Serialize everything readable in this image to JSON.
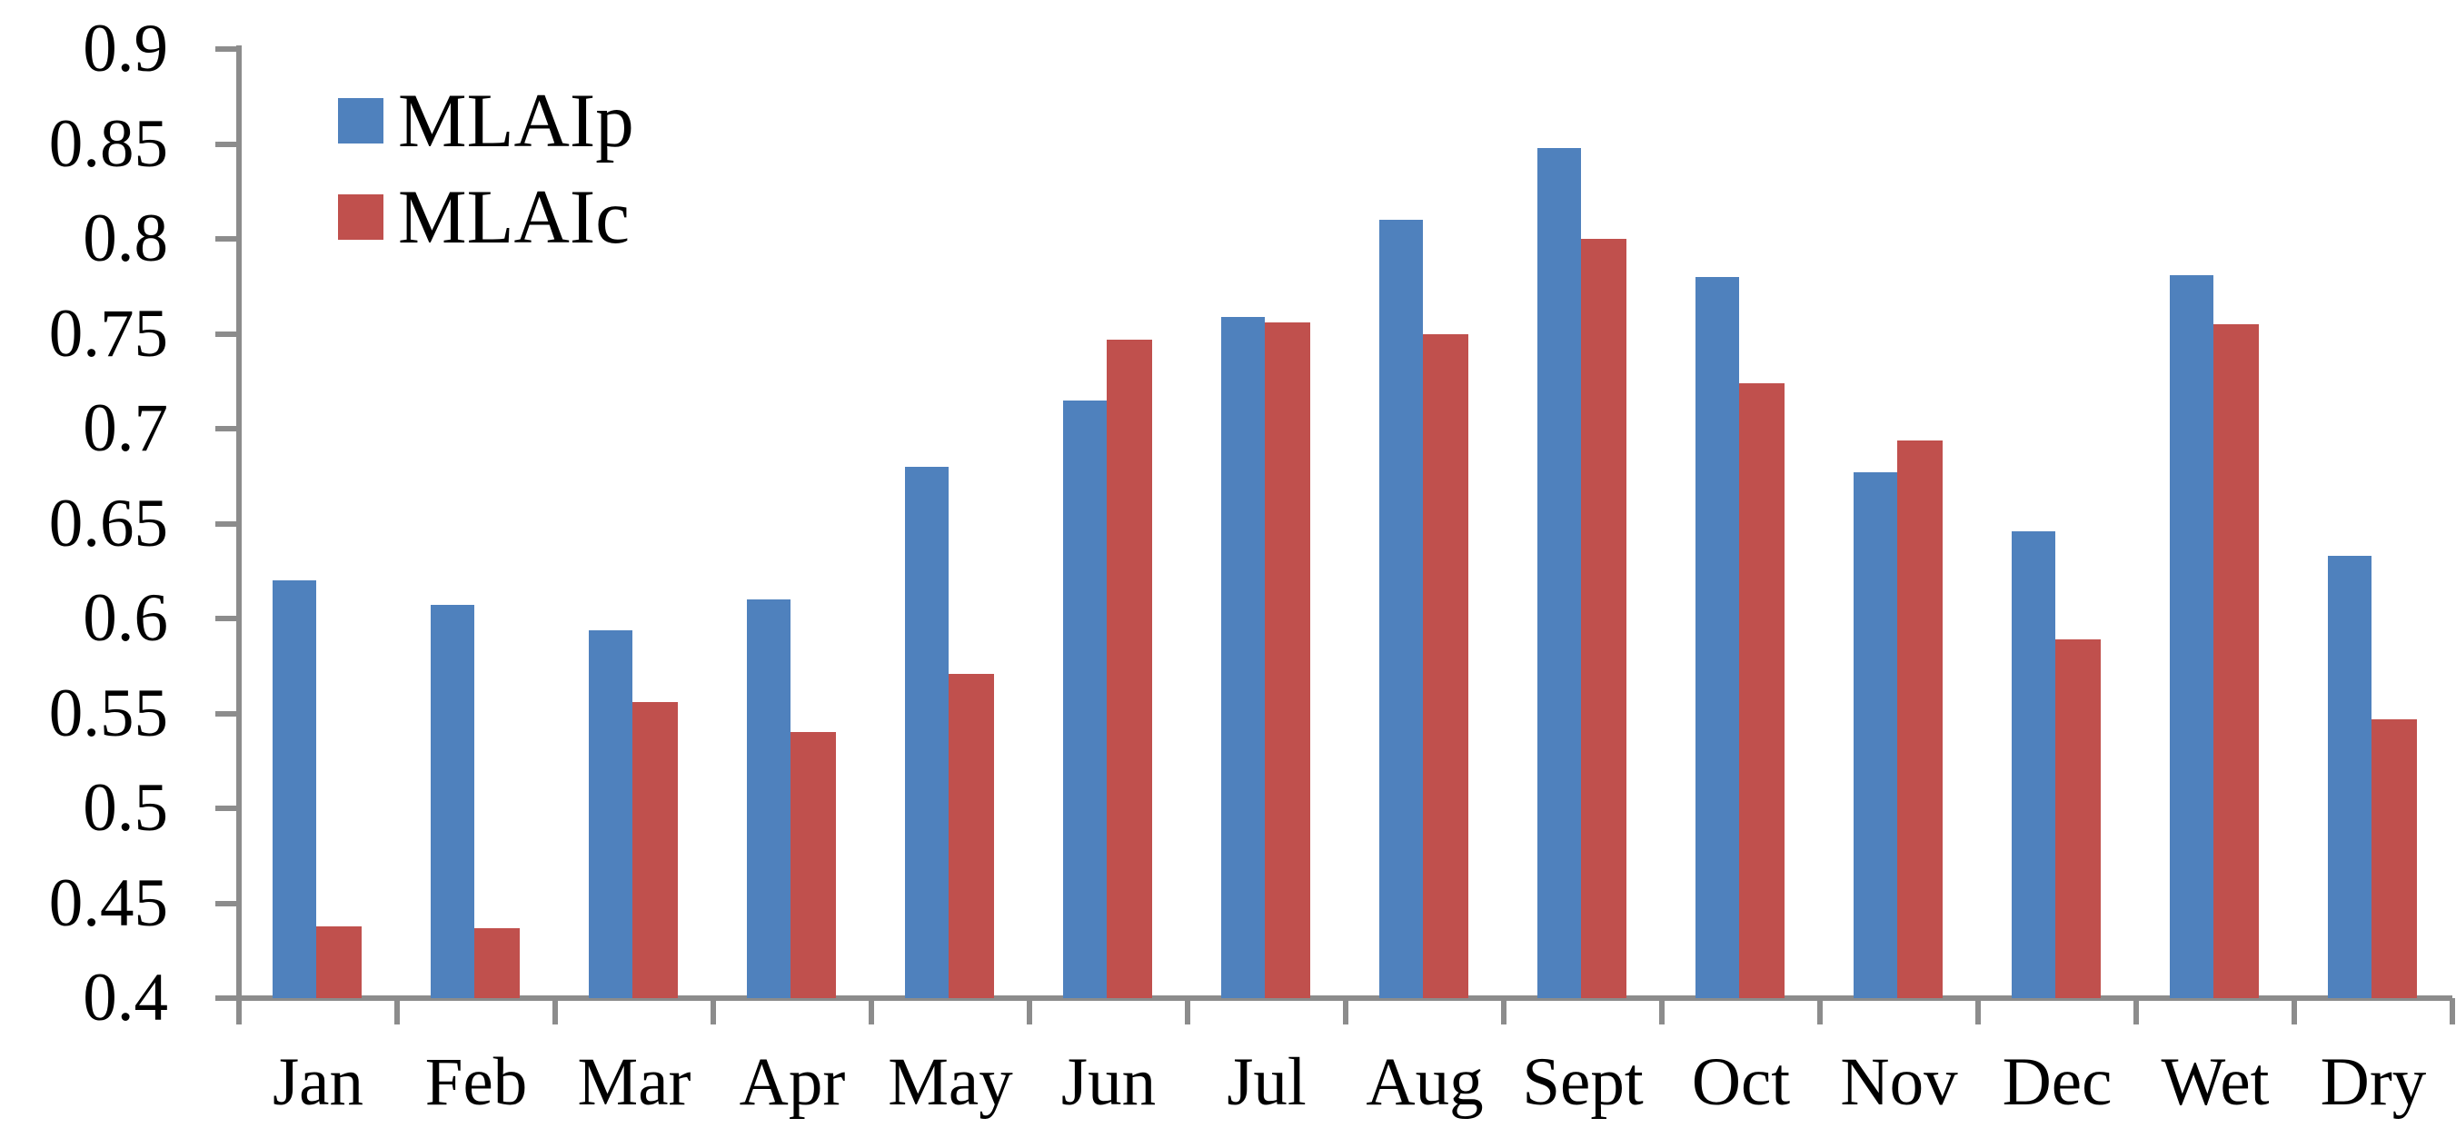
{
  "chart_data": {
    "type": "bar",
    "title": "",
    "xlabel": "",
    "ylabel": "",
    "categories": [
      "Jan",
      "Feb",
      "Mar",
      "Apr",
      "May",
      "Jun",
      "Jul",
      "Aug",
      "Sept",
      "Oct",
      "Nov",
      "Dec",
      "Wet",
      "Dry"
    ],
    "series": [
      {
        "name": "MLAIp",
        "color": "#4F81BD",
        "values": [
          0.62,
          0.607,
          0.594,
          0.61,
          0.68,
          0.715,
          0.759,
          0.81,
          0.848,
          0.78,
          0.677,
          0.646,
          0.781,
          0.633
        ]
      },
      {
        "name": "MLAIc",
        "color": "#C0504D",
        "values": [
          0.438,
          0.437,
          0.556,
          0.54,
          0.571,
          0.747,
          0.756,
          0.75,
          0.8,
          0.724,
          0.694,
          0.589,
          0.755,
          0.547
        ]
      }
    ],
    "y_axis": {
      "min": 0.4,
      "max": 0.9,
      "step": 0.05,
      "tick_labels": [
        "0.9",
        "0.85",
        "0.8",
        "0.75",
        "0.7",
        "0.65",
        "0.6",
        "0.55",
        "0.5",
        "0.45",
        "0.4"
      ]
    },
    "legend": {
      "position": "top-left",
      "entries": [
        {
          "label": "MLAIp",
          "color": "#4F81BD"
        },
        {
          "label": "MLAIc",
          "color": "#C0504D"
        }
      ]
    },
    "grid": false,
    "axis_color": "#8C8C8C",
    "background": "#FFFFFF"
  }
}
